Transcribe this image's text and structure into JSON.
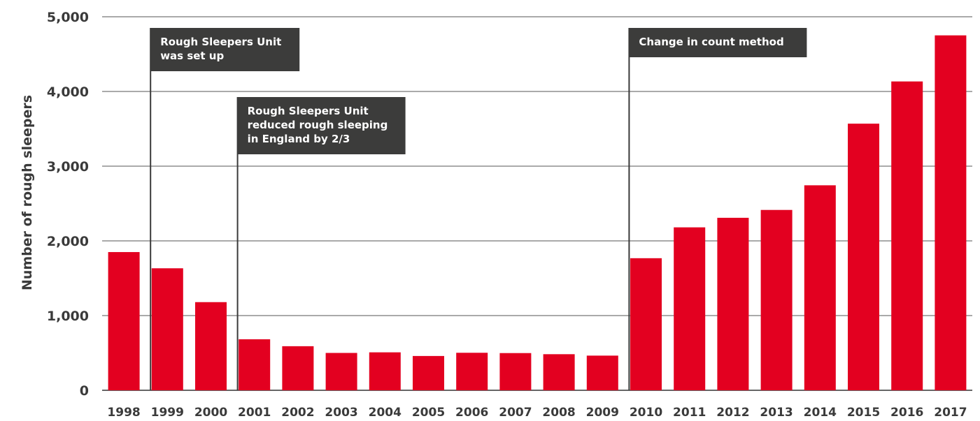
{
  "chart_data": {
    "type": "bar",
    "title": "",
    "xlabel": "",
    "ylabel": "Number of rough sleepers",
    "ylim": [
      0,
      5000
    ],
    "yticks": [
      0,
      1000,
      2000,
      3000,
      4000,
      5000
    ],
    "ytick_labels": [
      "0",
      "1,000",
      "2,000",
      "3,000",
      "4,000",
      "5,000"
    ],
    "grid": true,
    "categories": [
      "1998",
      "1999",
      "2000",
      "2001",
      "2002",
      "2003",
      "2004",
      "2005",
      "2006",
      "2007",
      "2008",
      "2009",
      "2010",
      "2011",
      "2012",
      "2013",
      "2014",
      "2015",
      "2016",
      "2017"
    ],
    "values": [
      1850,
      1633,
      1180,
      683,
      590,
      500,
      508,
      459,
      502,
      498,
      483,
      464,
      1768,
      2181,
      2309,
      2414,
      2744,
      3569,
      4134,
      4751
    ],
    "colors": {
      "bar": "#e30020",
      "annotation_box": "#3c3c3b",
      "annotation_text": "#ffffff"
    },
    "annotations": [
      {
        "at_category": "1999",
        "lines": [
          "Rough Sleepers Unit",
          "was set up"
        ]
      },
      {
        "at_category": "2001",
        "lines": [
          "Rough Sleepers Unit",
          "reduced rough sleeping",
          "in England by 2/3"
        ]
      },
      {
        "at_category": "2010",
        "lines": [
          "Change in count method"
        ]
      }
    ]
  }
}
